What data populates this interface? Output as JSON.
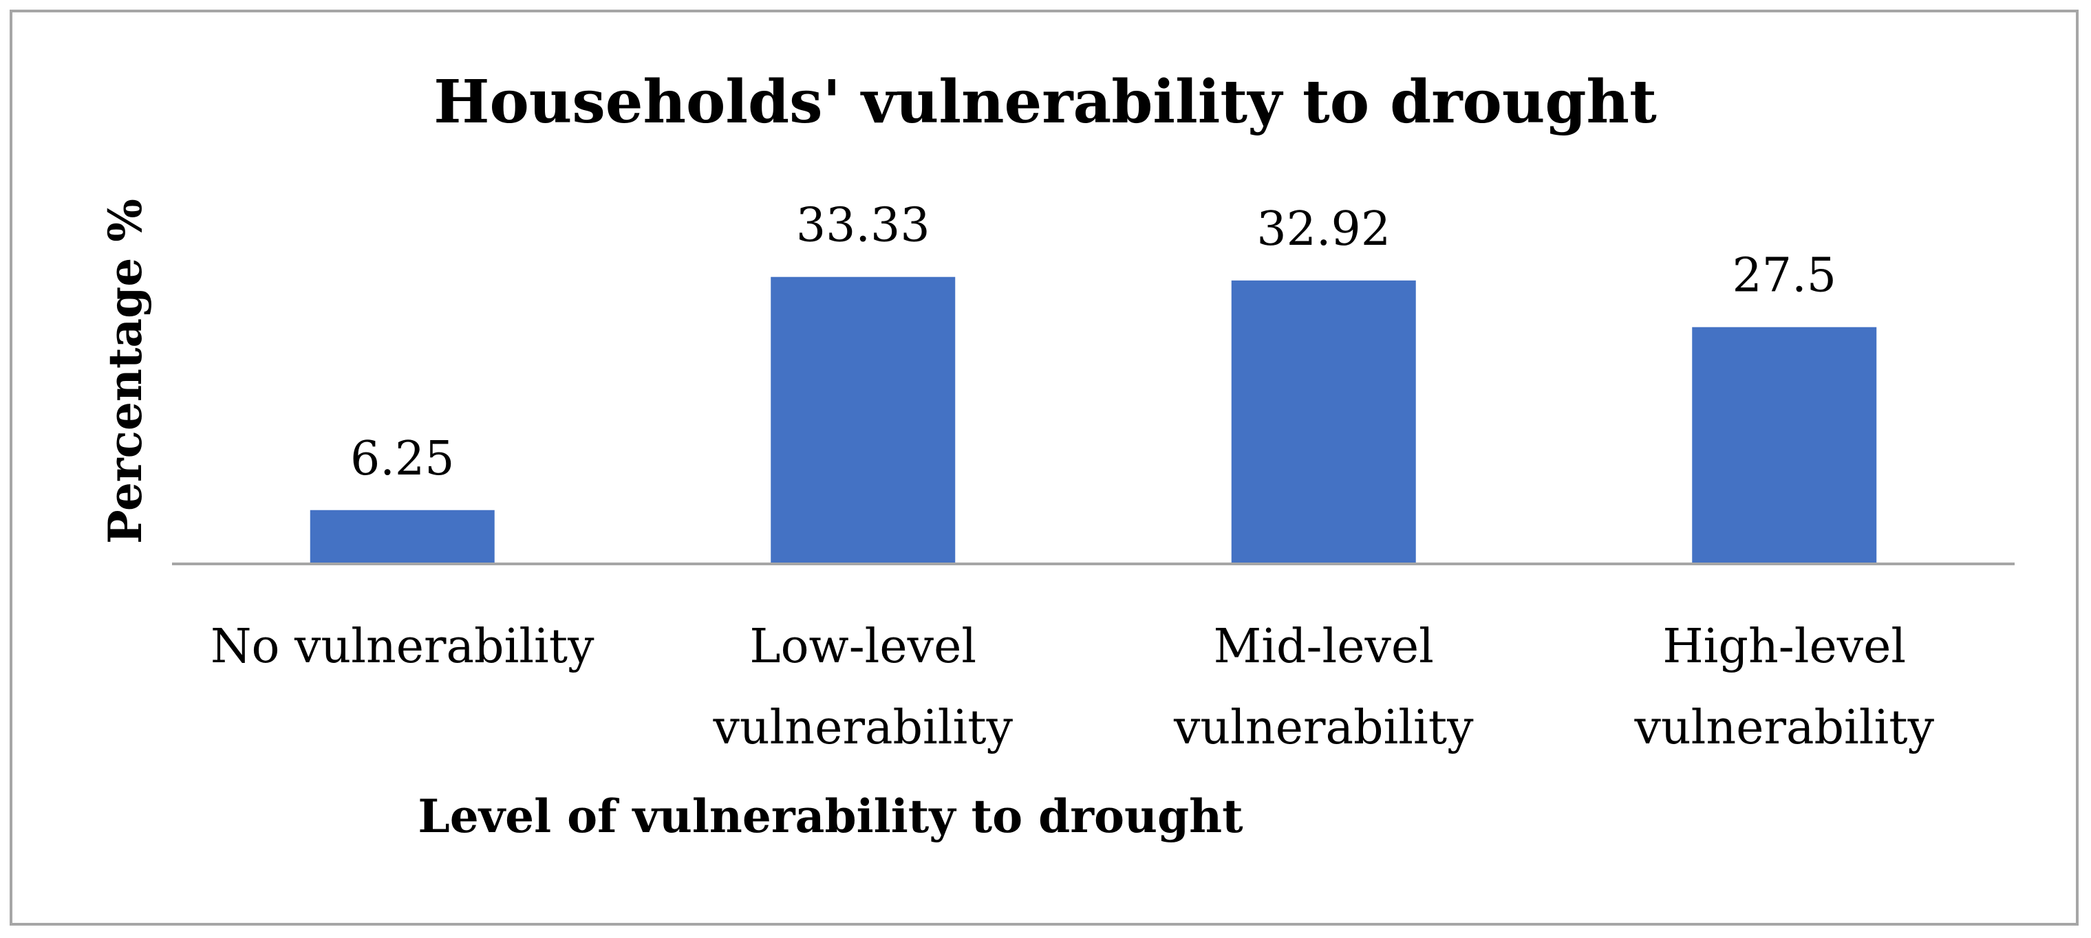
{
  "chart_data": {
    "type": "bar",
    "title": "Households' vulnerability to drought",
    "xlabel": "Level of vulnerability to drought",
    "ylabel": "Percentage %",
    "categories": [
      [
        "No vulnerability"
      ],
      [
        "Low-level",
        "vulnerability"
      ],
      [
        "Mid-level",
        "vulnerability"
      ],
      [
        "High-level",
        "vulnerability"
      ]
    ],
    "values": [
      6.25,
      33.33,
      32.92,
      27.5
    ],
    "value_labels": [
      "6.25",
      "33.33",
      "32.92",
      "27.5"
    ],
    "ylim": [
      0,
      40
    ],
    "grid": false,
    "legend": "none",
    "bar_color": "#4472c4",
    "axis_color": "#a6a6a6"
  }
}
